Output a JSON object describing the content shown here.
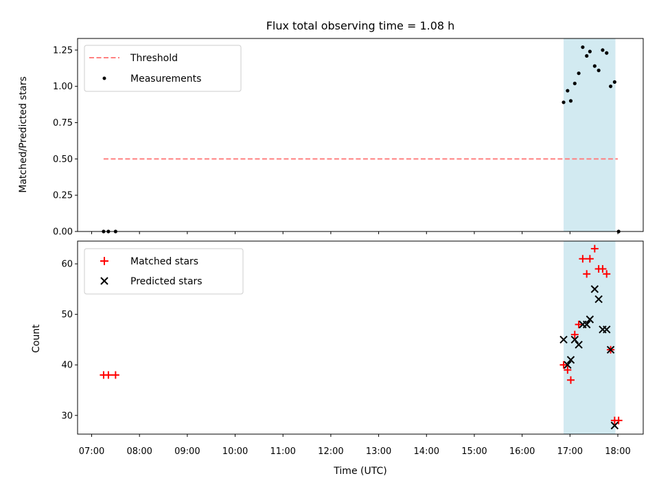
{
  "chart_data": {
    "type": "scatter",
    "title": "Flux total observing time = 1.08 h",
    "xlabel": "Time (UTC)",
    "x_ticks": [
      "07:00",
      "08:00",
      "09:00",
      "10:00",
      "11:00",
      "12:00",
      "13:00",
      "14:00",
      "15:00",
      "16:00",
      "17:00",
      "18:00"
    ],
    "shaded_interval": {
      "start": "16:52",
      "end": "17:57",
      "color": "#add8e6"
    },
    "panels": [
      {
        "ylabel": "Matched/Predicted stars",
        "ylim": [
          0,
          1.33
        ],
        "yticks": [
          "0.00",
          "0.25",
          "0.50",
          "0.75",
          "1.00",
          "1.25"
        ],
        "legend_position": "top-left",
        "series": [
          {
            "name": "Threshold",
            "kind": "line",
            "style": "dashed",
            "color": "#ff7f7f",
            "points": [
              {
                "x": "07:15",
                "y": 0.5
              },
              {
                "x": "18:00",
                "y": 0.5
              }
            ]
          },
          {
            "name": "Measurements",
            "kind": "scatter",
            "marker": "dot",
            "color": "#000000",
            "points": [
              {
                "x": "07:15",
                "y": 0.0
              },
              {
                "x": "07:21",
                "y": 0.0
              },
              {
                "x": "07:30",
                "y": 0.0
              },
              {
                "x": "16:52",
                "y": 0.89
              },
              {
                "x": "16:57",
                "y": 0.97
              },
              {
                "x": "17:01",
                "y": 0.9
              },
              {
                "x": "17:06",
                "y": 1.02
              },
              {
                "x": "17:11",
                "y": 1.09
              },
              {
                "x": "17:16",
                "y": 1.27
              },
              {
                "x": "17:21",
                "y": 1.21
              },
              {
                "x": "17:25",
                "y": 1.24
              },
              {
                "x": "17:31",
                "y": 1.14
              },
              {
                "x": "17:36",
                "y": 1.11
              },
              {
                "x": "17:41",
                "y": 1.25
              },
              {
                "x": "17:46",
                "y": 1.23
              },
              {
                "x": "17:51",
                "y": 1.0
              },
              {
                "x": "17:56",
                "y": 1.03
              },
              {
                "x": "18:01",
                "y": 0.0
              }
            ]
          }
        ]
      },
      {
        "ylabel": "Count",
        "ylim": [
          26.3,
          64.5
        ],
        "yticks": [
          "30",
          "40",
          "50",
          "60"
        ],
        "legend_position": "top-left",
        "series": [
          {
            "name": "Matched stars",
            "kind": "scatter",
            "marker": "plus",
            "color": "#ff0000",
            "points": [
              {
                "x": "07:15",
                "y": 38
              },
              {
                "x": "07:21",
                "y": 38
              },
              {
                "x": "07:30",
                "y": 38
              },
              {
                "x": "16:52",
                "y": 40
              },
              {
                "x": "16:57",
                "y": 39
              },
              {
                "x": "17:01",
                "y": 37
              },
              {
                "x": "17:06",
                "y": 46
              },
              {
                "x": "17:11",
                "y": 48
              },
              {
                "x": "17:16",
                "y": 61
              },
              {
                "x": "17:21",
                "y": 58
              },
              {
                "x": "17:25",
                "y": 61
              },
              {
                "x": "17:31",
                "y": 63
              },
              {
                "x": "17:36",
                "y": 59
              },
              {
                "x": "17:41",
                "y": 59
              },
              {
                "x": "17:46",
                "y": 58
              },
              {
                "x": "17:51",
                "y": 43
              },
              {
                "x": "17:56",
                "y": 29
              },
              {
                "x": "18:01",
                "y": 29
              }
            ]
          },
          {
            "name": "Predicted stars",
            "kind": "scatter",
            "marker": "x",
            "color": "#000000",
            "points": [
              {
                "x": "16:52",
                "y": 45
              },
              {
                "x": "16:57",
                "y": 40
              },
              {
                "x": "17:01",
                "y": 41
              },
              {
                "x": "17:06",
                "y": 45
              },
              {
                "x": "17:11",
                "y": 44
              },
              {
                "x": "17:16",
                "y": 48
              },
              {
                "x": "17:21",
                "y": 48
              },
              {
                "x": "17:25",
                "y": 49
              },
              {
                "x": "17:31",
                "y": 55
              },
              {
                "x": "17:36",
                "y": 53
              },
              {
                "x": "17:41",
                "y": 47
              },
              {
                "x": "17:46",
                "y": 47
              },
              {
                "x": "17:51",
                "y": 43
              },
              {
                "x": "17:56",
                "y": 28
              }
            ]
          }
        ]
      }
    ]
  }
}
